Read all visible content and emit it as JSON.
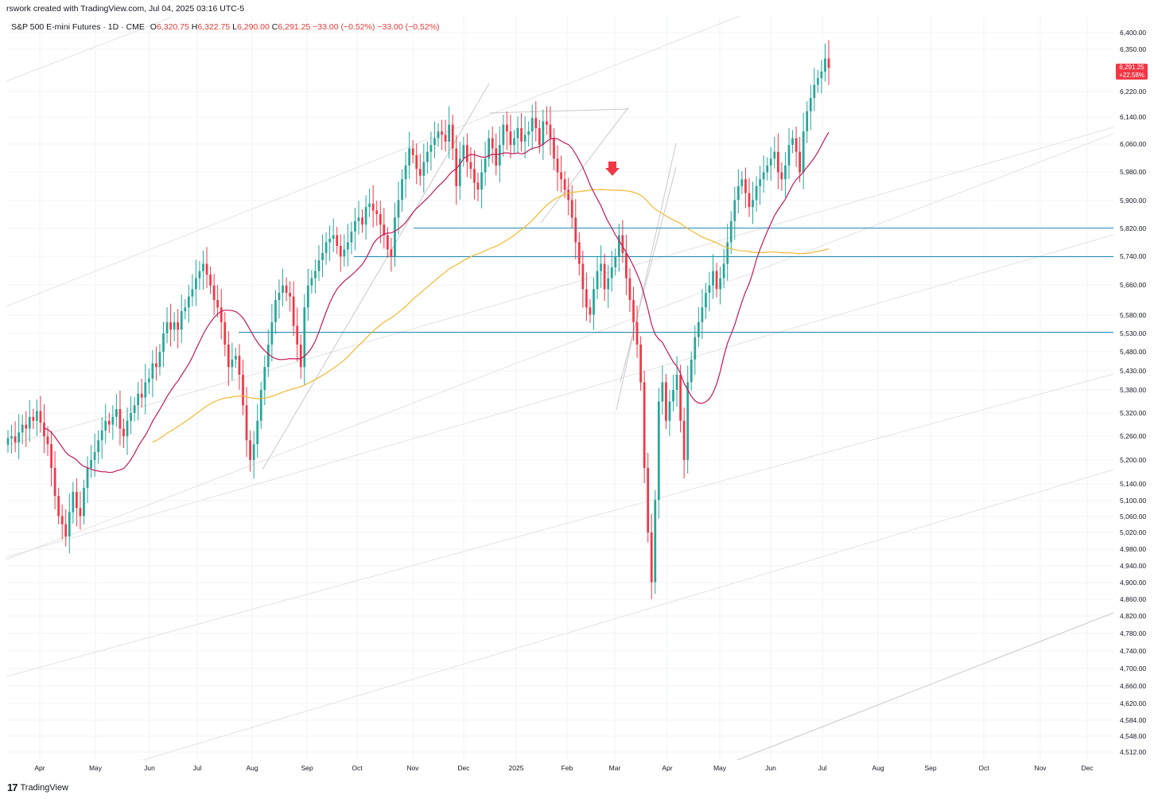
{
  "header": {
    "attribution": "rswork created with TradingView.com, Jul 04, 2025 03:16 UTC-5"
  },
  "symbol_bar": {
    "instrument": "S&P 500 E-mini Futures · 1D · CME",
    "open_label": "O",
    "open": "6,320.75",
    "high_label": "H",
    "high": "6,322.75",
    "low_label": "L",
    "low": "6,290.00",
    "close_label": "C",
    "close": "6,291.25",
    "change": "−33.00 (−0.52%)",
    "change2": "−33.00 (−0.52%)"
  },
  "price_tag": {
    "price": "6,291.25",
    "change_pct": "+22.58%"
  },
  "footer": {
    "brand_mark": "17",
    "brand": "TradingView"
  },
  "colors": {
    "up": "#26a69a",
    "down": "#f23645",
    "ma_short": "#c2185b",
    "ma_long": "#f5b82e",
    "horizontal_lines": "#1e88b4",
    "trendlines": "#c9c9c9",
    "grid": "#f0f3fa"
  },
  "chart_data": {
    "type": "candlestick",
    "log_scale": true,
    "grid": true,
    "y_ticks": [
      "6,400.00",
      "6,350.00",
      "6,220.00",
      "6,140.00",
      "6,060.00",
      "5,980.00",
      "5,900.00",
      "5,820.00",
      "5,740.00",
      "5,660.00",
      "5,580.00",
      "5,530.00",
      "5,480.00",
      "5,430.00",
      "5,380.00",
      "5,320.00",
      "5,260.00",
      "5,200.00",
      "5,140.00",
      "5,100.00",
      "5,060.00",
      "5,020.00",
      "4,980.00",
      "4,940.00",
      "4,900.00",
      "4,860.00",
      "4,820.00",
      "4,780.00",
      "4,740.00",
      "4,700.00",
      "4,660.00",
      "4,620.00",
      "4,584.00",
      "4,548.00",
      "4,512.00"
    ],
    "x_ticks": [
      "Apr",
      "May",
      "Jun",
      "Jul",
      "Aug",
      "Sep",
      "Oct",
      "Nov",
      "Dec",
      "2025",
      "Feb",
      "Mar",
      "Apr",
      "May",
      "Jun",
      "Jul",
      "Aug",
      "Sep",
      "Oct",
      "Nov",
      "Dec"
    ],
    "horizontal_levels": [
      5820,
      5740,
      5533
    ],
    "candles_close": [
      5255,
      5260,
      5245,
      5270,
      5290,
      5280,
      5310,
      5300,
      5325,
      5295,
      5260,
      5240,
      5180,
      5110,
      5060,
      5040,
      5010,
      5070,
      5120,
      5080,
      5060,
      5130,
      5180,
      5200,
      5220,
      5250,
      5275,
      5300,
      5290,
      5310,
      5330,
      5280,
      5260,
      5300,
      5320,
      5340,
      5370,
      5360,
      5400,
      5410,
      5450,
      5440,
      5480,
      5530,
      5560,
      5540,
      5560,
      5540,
      5590,
      5600,
      5630,
      5650,
      5680,
      5700,
      5720,
      5690,
      5660,
      5620,
      5600,
      5560,
      5500,
      5440,
      5460,
      5470,
      5420,
      5340,
      5250,
      5200,
      5240,
      5300,
      5380,
      5440,
      5500,
      5560,
      5620,
      5640,
      5660,
      5640,
      5630,
      5550,
      5500,
      5440,
      5600,
      5660,
      5680,
      5700,
      5730,
      5750,
      5780,
      5790,
      5800,
      5770,
      5740,
      5760,
      5780,
      5810,
      5840,
      5850,
      5830,
      5880,
      5890,
      5870,
      5860,
      5830,
      5800,
      5760,
      5740,
      5850,
      5900,
      5960,
      6000,
      6050,
      6030,
      5990,
      5970,
      6010,
      6040,
      6060,
      6080,
      6100,
      6090,
      6070,
      6120,
      6050,
      5940,
      6020,
      6060,
      6010,
      5990,
      5950,
      5930,
      5980,
      6020,
      6080,
      6050,
      6000,
      6060,
      6120,
      6100,
      6060,
      6080,
      6110,
      6070,
      6090,
      6100,
      6140,
      6110,
      6060,
      6130,
      6120,
      6080,
      6020,
      5980,
      5960,
      5930,
      5900,
      5850,
      5780,
      5720,
      5650,
      5600,
      5580,
      5650,
      5700,
      5720,
      5650,
      5680,
      5710,
      5740,
      5800,
      5750,
      5680,
      5620,
      5560,
      5500,
      5400,
      5180,
      5020,
      4900,
      5100,
      5350,
      5400,
      5300,
      5350,
      5380,
      5420,
      5300,
      5200,
      5400,
      5460,
      5520,
      5560,
      5600,
      5640,
      5660,
      5700,
      5650,
      5680,
      5720,
      5780,
      5840,
      5900,
      5940,
      5960,
      5920,
      5880,
      5900,
      5940,
      5960,
      5980,
      6000,
      6020,
      6040,
      5980,
      5960,
      6000,
      6060,
      6080,
      6040,
      5980,
      6100,
      6160,
      6200,
      6240,
      6260,
      6280,
      6320,
      6291
    ],
    "series": [
      {
        "name": "",
        "color_key": "ma_short"
      },
      {
        "name": "",
        "color_key": "ma_long"
      }
    ]
  }
}
